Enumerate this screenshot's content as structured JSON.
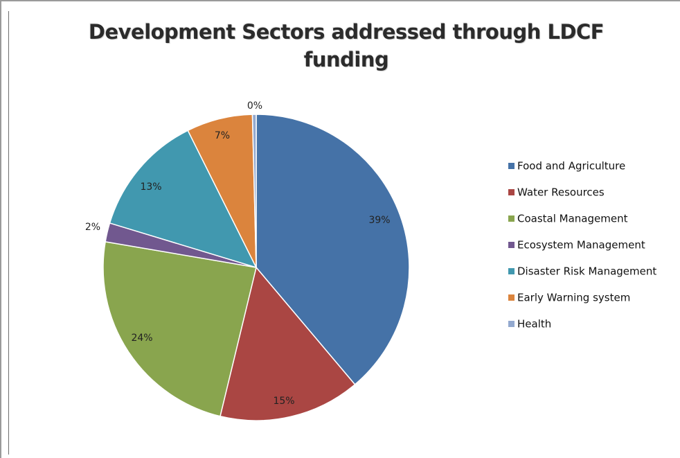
{
  "chart_data": {
    "type": "pie",
    "title": "Development Sectors addressed through LDCF funding",
    "title_lines": [
      "Development Sectors addressed through LDCF",
      "funding"
    ],
    "legend_position": "right",
    "slices": [
      {
        "name": "Food and Agriculture",
        "value": 39,
        "label": "39%",
        "color": "#4572a7"
      },
      {
        "name": "Water Resources",
        "value": 15,
        "label": "15%",
        "color": "#aa4643"
      },
      {
        "name": "Coastal Management",
        "value": 24,
        "label": "24%",
        "color": "#89a54e"
      },
      {
        "name": "Ecosystem Management",
        "value": 2,
        "label": "2%",
        "color": "#71588f"
      },
      {
        "name": "Disaster Risk Management",
        "value": 13,
        "label": "13%",
        "color": "#4198af"
      },
      {
        "name": "Early Warning  system",
        "value": 7,
        "label": "7%",
        "color": "#db843d"
      },
      {
        "name": "Health",
        "value": 0.4,
        "label": "0%",
        "color": "#93a9cf"
      }
    ]
  }
}
